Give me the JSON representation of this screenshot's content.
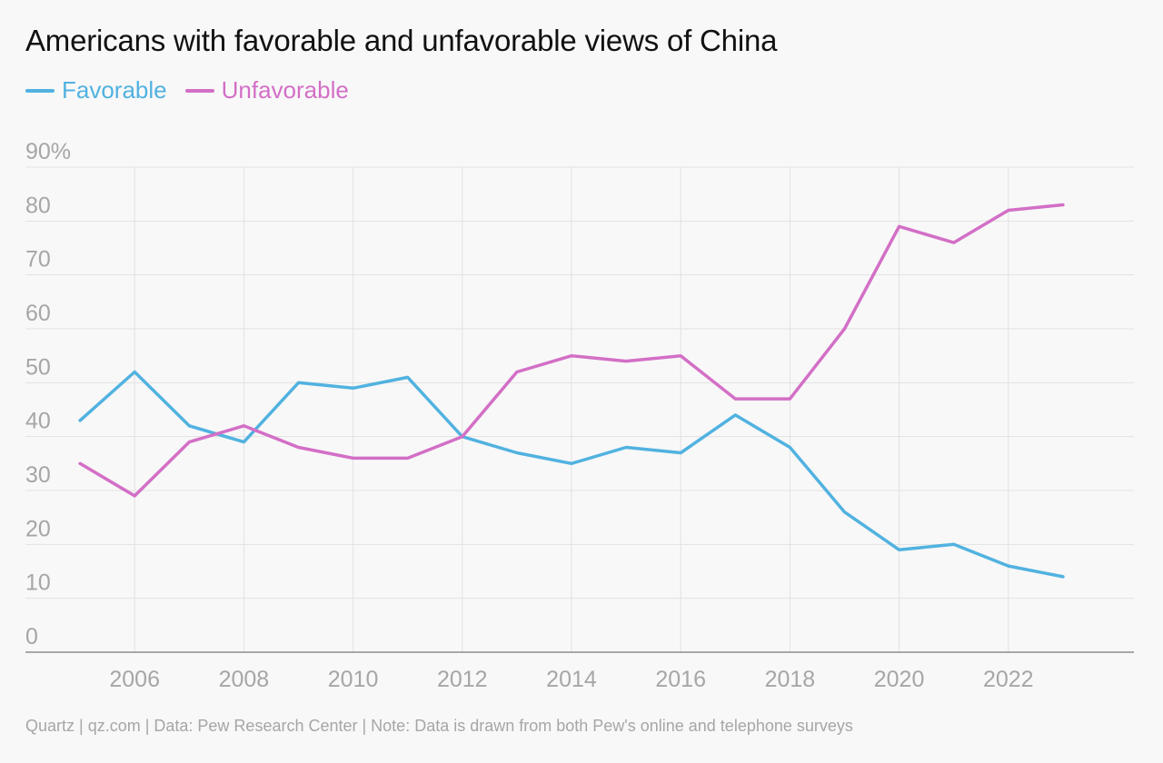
{
  "chart_data": {
    "type": "line",
    "title": "Americans with favorable and unfavorable views of China",
    "xlabel": "",
    "ylabel": "",
    "x": [
      2005,
      2006,
      2007,
      2008,
      2009,
      2010,
      2011,
      2012,
      2013,
      2014,
      2015,
      2016,
      2017,
      2018,
      2019,
      2020,
      2021,
      2022,
      2023
    ],
    "xlim": [
      2004,
      2024.3
    ],
    "ylim": [
      0,
      90
    ],
    "xticks": [
      2006,
      2008,
      2010,
      2012,
      2014,
      2016,
      2018,
      2020,
      2022
    ],
    "xtick_labels": [
      "2006",
      "2008",
      "2010",
      "2012",
      "2014",
      "2016",
      "2018",
      "2020",
      "2022"
    ],
    "yticks": [
      0,
      10,
      20,
      30,
      40,
      50,
      60,
      70,
      80,
      90
    ],
    "ytick_labels": [
      "0",
      "10",
      "20",
      "30",
      "40",
      "50",
      "60",
      "70",
      "80",
      "90%"
    ],
    "grid": true,
    "legend_position": "top-left",
    "series": [
      {
        "name": "Favorable",
        "color": "#51b2e0",
        "values": [
          43,
          52,
          42,
          39,
          50,
          49,
          51,
          40,
          37,
          35,
          38,
          37,
          44,
          38,
          26,
          19,
          20,
          16,
          14
        ]
      },
      {
        "name": "Unfavorable",
        "color": "#d36fc6",
        "values": [
          35,
          29,
          39,
          42,
          38,
          36,
          36,
          40,
          52,
          55,
          54,
          55,
          47,
          47,
          60,
          79,
          76,
          82,
          83
        ]
      }
    ]
  },
  "footer": {
    "source": "Quartz | qz.com | Data: Pew Research Center | Note: Data is drawn from both Pew's online and telephone surveys"
  }
}
